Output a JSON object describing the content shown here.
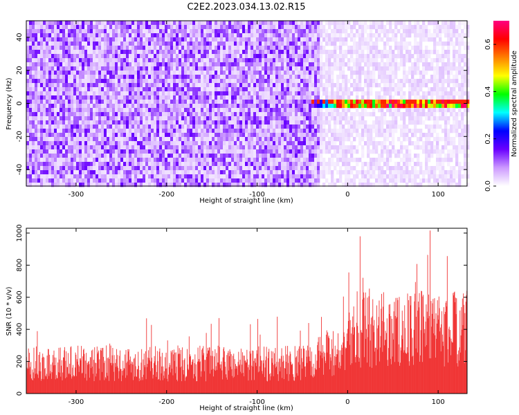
{
  "title": "C2E2.2023.034.13.02.R15",
  "colors": {
    "snr_series": "#f03232",
    "spectrogram_background": "#ffffff",
    "colormap": [
      "#ffffff",
      "#cc99ff",
      "#6a00ff",
      "#0000ff",
      "#00ffff",
      "#00ff00",
      "#ffff00",
      "#ff8000",
      "#ff0000",
      "#ff0080"
    ]
  },
  "chart_data": [
    {
      "type": "heatmap",
      "xlabel": "Height of straight line (km)",
      "ylabel": "Frequency (Hz)",
      "xlim": [
        -355,
        132
      ],
      "ylim": [
        -50,
        50
      ],
      "x_ticks": [
        -300,
        -200,
        -100,
        0,
        100
      ],
      "y_ticks": [
        -40,
        -20,
        0,
        20,
        40
      ],
      "colorbar": {
        "label": "Normalized spectral amplitude",
        "range": [
          0,
          0.7
        ],
        "ticks": [
          0.0,
          0.2,
          0.4,
          0.6
        ]
      },
      "features": {
        "noise_region_x": [
          -355,
          -30
        ],
        "signal_line_frequency_hz": 0,
        "signal_line_x_start": -40,
        "signal_line_x_end": 132,
        "noise_level_left": 0.1,
        "noise_level_right": 0.03,
        "signal_peak_amplitude": 0.6
      }
    },
    {
      "type": "bar",
      "xlabel": "Height of straight line (km)",
      "ylabel": "SNR (10 * v/v)",
      "xlim": [
        -355,
        132
      ],
      "ylim": [
        0,
        1030
      ],
      "x_ticks": [
        -300,
        -200,
        -100,
        0,
        100
      ],
      "y_ticks": [
        0,
        200,
        400,
        600,
        800,
        1000
      ],
      "series": [
        {
          "segments": [
            {
              "x_range": [
                -355,
                -35
              ],
              "typical_max": 300,
              "peak_max": 490
            },
            {
              "x_range": [
                -35,
                0
              ],
              "typical_max": 400,
              "peak_max": 660
            },
            {
              "x_range": [
                0,
                132
              ],
              "typical_max": 640,
              "peak_max": 1030
            }
          ]
        }
      ]
    }
  ]
}
